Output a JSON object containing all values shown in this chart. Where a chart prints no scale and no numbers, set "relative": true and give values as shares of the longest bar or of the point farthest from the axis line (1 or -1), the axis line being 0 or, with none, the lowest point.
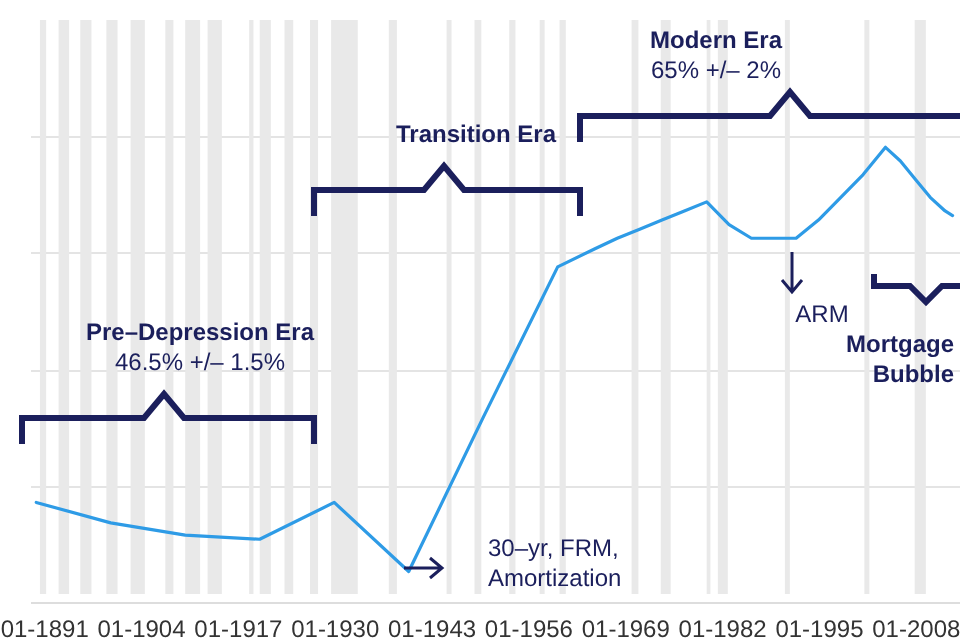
{
  "chart_data": {
    "type": "line",
    "relative": true,
    "grid": "y",
    "annotations": [
      "Pre–Depression Era",
      "46.5% +/– 1.5%",
      "Transition Era",
      "Modern Era",
      "65% +/– 2%",
      "ARM",
      "Mortgage Bubble",
      "30–yr, FRM, Amortization"
    ],
    "x": [
      "1890",
      "1900",
      "1910",
      "1920",
      "1930",
      "1940",
      "1950",
      "1960",
      "1965",
      "1968",
      "1971",
      "1974",
      "1977",
      "1980",
      "1983",
      "1986",
      "1989",
      "1992",
      "1995",
      "1998",
      "2001",
      "2004",
      "2006",
      "2008",
      "2010",
      "2012",
      "2013"
    ],
    "series": [
      {
        "color": "#2e9be6",
        "values": [
          0.219,
          0.174,
          0.147,
          0.138,
          0.219,
          0.067,
          0.406,
          0.737,
          0.777,
          0.8,
          0.82,
          0.84,
          0.86,
          0.88,
          0.83,
          0.8,
          0.8,
          0.8,
          0.84,
          0.89,
          0.94,
          1,
          0.97,
          0.93,
          0.89,
          0.86,
          0.85
        ]
      }
    ],
    "xlim": [
      "1889-03",
      "2014-01"
    ],
    "xticks": [
      {
        "value": "1891-01",
        "label": "01-1891"
      },
      {
        "value": "1904-01",
        "label": "01-1904"
      },
      {
        "value": "1917-01",
        "label": "01-1917"
      },
      {
        "value": "1930-01",
        "label": "01-1930"
      },
      {
        "value": "1943-01",
        "label": "01-1943"
      },
      {
        "value": "1956-01",
        "label": "01-1956"
      },
      {
        "value": "1969-01",
        "label": "01-1969"
      },
      {
        "value": "1982-01",
        "label": "01-1982"
      },
      {
        "value": "1995-01",
        "label": "01-1995"
      },
      {
        "value": "2008-01",
        "label": "01-2008"
      }
    ],
    "bands": [
      {
        "axis": "x",
        "from": "1890-07",
        "to": "1891-05",
        "color": "#e9e9e9"
      },
      {
        "axis": "x",
        "from": "1893-01",
        "to": "1894-06",
        "color": "#e9e9e9"
      },
      {
        "axis": "x",
        "from": "1895-12",
        "to": "1897-06",
        "color": "#e9e9e9"
      },
      {
        "axis": "x",
        "from": "1899-06",
        "to": "1900-12",
        "color": "#e9e9e9"
      },
      {
        "axis": "x",
        "from": "1902-09",
        "to": "1904-08",
        "color": "#e9e9e9"
      },
      {
        "axis": "x",
        "from": "1907-05",
        "to": "1908-06",
        "color": "#e9e9e9"
      },
      {
        "axis": "x",
        "from": "1910-01",
        "to": "1912-01",
        "color": "#e9e9e9"
      },
      {
        "axis": "x",
        "from": "1913-01",
        "to": "1914-12",
        "color": "#e9e9e9"
      },
      {
        "axis": "x",
        "from": "1918-08",
        "to": "1919-03",
        "color": "#e9e9e9"
      },
      {
        "axis": "x",
        "from": "1920-01",
        "to": "1921-07",
        "color": "#e9e9e9"
      },
      {
        "axis": "x",
        "from": "1923-05",
        "to": "1924-07",
        "color": "#e9e9e9"
      },
      {
        "axis": "x",
        "from": "1926-10",
        "to": "1927-11",
        "color": "#e9e9e9"
      },
      {
        "axis": "x",
        "from": "1929-08",
        "to": "1933-03",
        "color": "#e9e9e9"
      },
      {
        "axis": "x",
        "from": "1937-05",
        "to": "1938-06",
        "color": "#e9e9e9"
      },
      {
        "axis": "x",
        "from": "1945-02",
        "to": "1945-10",
        "color": "#e9e9e9"
      },
      {
        "axis": "x",
        "from": "1948-11",
        "to": "1949-10",
        "color": "#e9e9e9"
      },
      {
        "axis": "x",
        "from": "1953-07",
        "to": "1954-05",
        "color": "#e9e9e9"
      },
      {
        "axis": "x",
        "from": "1957-08",
        "to": "1958-04",
        "color": "#e9e9e9"
      },
      {
        "axis": "x",
        "from": "1960-04",
        "to": "1961-02",
        "color": "#e9e9e9"
      },
      {
        "axis": "x",
        "from": "1969-12",
        "to": "1970-11",
        "color": "#e9e9e9"
      },
      {
        "axis": "x",
        "from": "1973-11",
        "to": "1975-03",
        "color": "#e9e9e9"
      },
      {
        "axis": "x",
        "from": "1980-01",
        "to": "1980-07",
        "color": "#e9e9e9"
      },
      {
        "axis": "x",
        "from": "1981-07",
        "to": "1982-11",
        "color": "#e9e9e9"
      },
      {
        "axis": "x",
        "from": "1990-07",
        "to": "1991-03",
        "color": "#e9e9e9"
      },
      {
        "axis": "x",
        "from": "2001-03",
        "to": "2001-11",
        "color": "#e9e9e9"
      },
      {
        "axis": "x",
        "from": "2007-12",
        "to": "2009-06",
        "color": "#e9e9e9"
      }
    ]
  }
}
